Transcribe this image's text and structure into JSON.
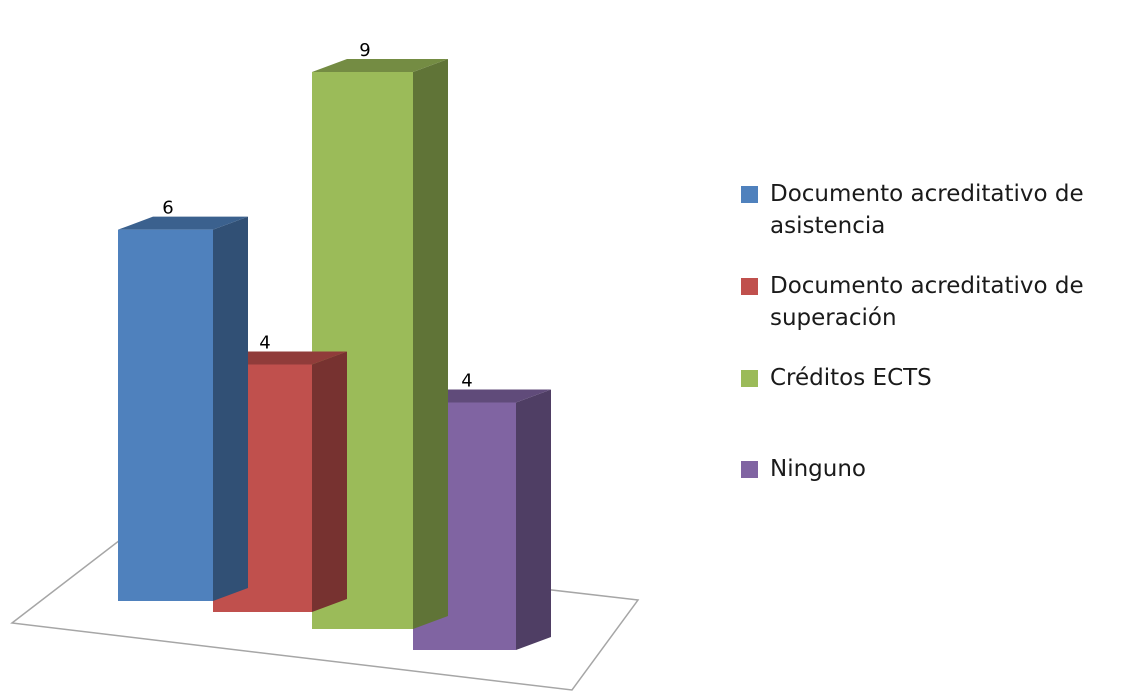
{
  "chart_data": {
    "type": "bar",
    "title": "",
    "xlabel": "",
    "ylabel": "",
    "ylim": [
      0,
      9
    ],
    "categories": [
      "Documento acreditativo de asistencia",
      "Documento acreditativo de superación",
      "Créditos ECTS",
      "Ninguno"
    ],
    "values": [
      6,
      4,
      9,
      4
    ],
    "colors": [
      "#4f81bd",
      "#c0504d",
      "#9bbb59",
      "#8064a2"
    ],
    "data_labels": [
      "6",
      "4",
      "9",
      "4"
    ],
    "style": "3d-column",
    "legend_position": "right",
    "grid": false
  },
  "legend": {
    "items": [
      {
        "label": "Documento acreditativo de asistencia",
        "color": "#4f81bd"
      },
      {
        "label": "Documento acreditativo de superación",
        "color": "#c0504d"
      },
      {
        "label": "Créditos ECTS",
        "color": "#9bbb59"
      },
      {
        "label": "Ninguno",
        "color": "#8064a2"
      }
    ]
  }
}
